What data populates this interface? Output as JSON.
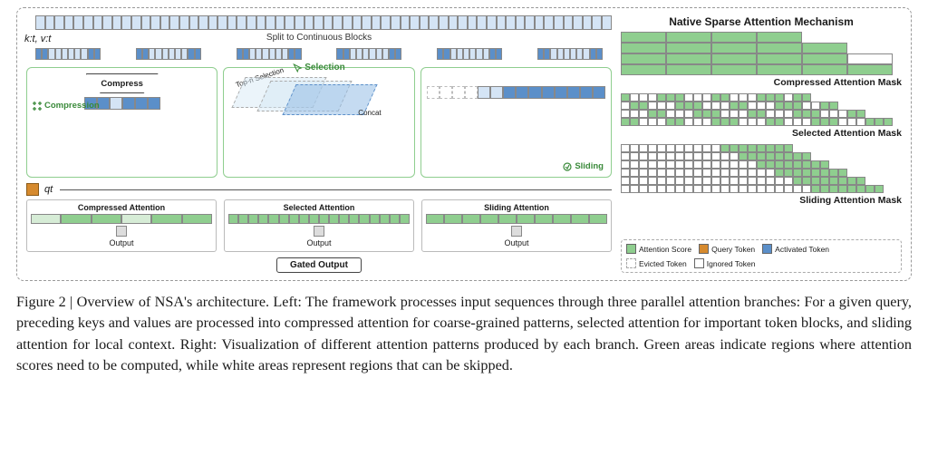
{
  "colors": {
    "token_light": "#d4e4f5",
    "token_active": "#5b8fc9",
    "score_green": "#8fce8f",
    "score_lightg": "#d6ecd6",
    "query_orange": "#d68a2e",
    "border_grey": "#888888",
    "branch_border": "#8fce8f",
    "branch_text": "#3a8a3a",
    "dash_grey": "#999999",
    "bg_white": "#ffffff"
  },
  "left": {
    "kv_label": "k:t, v:t",
    "split_label": "Split to Continuous Blocks",
    "qt_label": "qt",
    "gated_label": "Gated Output",
    "output_label": "Output",
    "branches": {
      "compress": {
        "label": "Compression",
        "op_label": "Compress"
      },
      "selection": {
        "label": "Selection",
        "topn": "Top-n Selection",
        "concat": "Concat"
      },
      "sliding": {
        "label": "Sliding"
      }
    },
    "attn": {
      "compressed": "Compressed Attention",
      "selected": "Selected Attention",
      "sliding": "Sliding Attention"
    }
  },
  "right": {
    "title": "Native Sparse Attention Mechanism",
    "masks": {
      "compressed": "Compressed Attention Mask",
      "selected": "Selected Attention Mask",
      "sliding": "Sliding Attention Mask"
    },
    "compressed_mask": {
      "rows": 4,
      "cols": 6,
      "block_w": 5,
      "pattern": [
        [
          1,
          1,
          1,
          1,
          0,
          0
        ],
        [
          1,
          1,
          1,
          1,
          1,
          0
        ],
        [
          1,
          1,
          1,
          1,
          1,
          0
        ],
        [
          1,
          1,
          1,
          1,
          1,
          1
        ]
      ]
    },
    "selected_mask": {
      "rows": 4,
      "cols": 30,
      "pattern": "random-sparse-lower-tri"
    },
    "sliding_mask": {
      "rows": 6,
      "cols": 30,
      "window": 8
    }
  },
  "legend": {
    "score": "Attention Score",
    "query": "Query Token",
    "active": "Activated Token",
    "evict": "Evicted Token",
    "ignore": "Ignored Token"
  },
  "caption": {
    "lead": "Figure 2 | Overview of NSA's architecture.",
    "body": " Left: The framework processes input sequences through three parallel attention branches: For a given query, preceding keys and values are processed into compressed attention for coarse-grained patterns, selected attention for important token blocks, and sliding attention for local context. Right: Visualization of different attention patterns produced by each branch. Green areas indicate regions where attention scores need to be computed, while white areas represent regions that can be skipped."
  }
}
